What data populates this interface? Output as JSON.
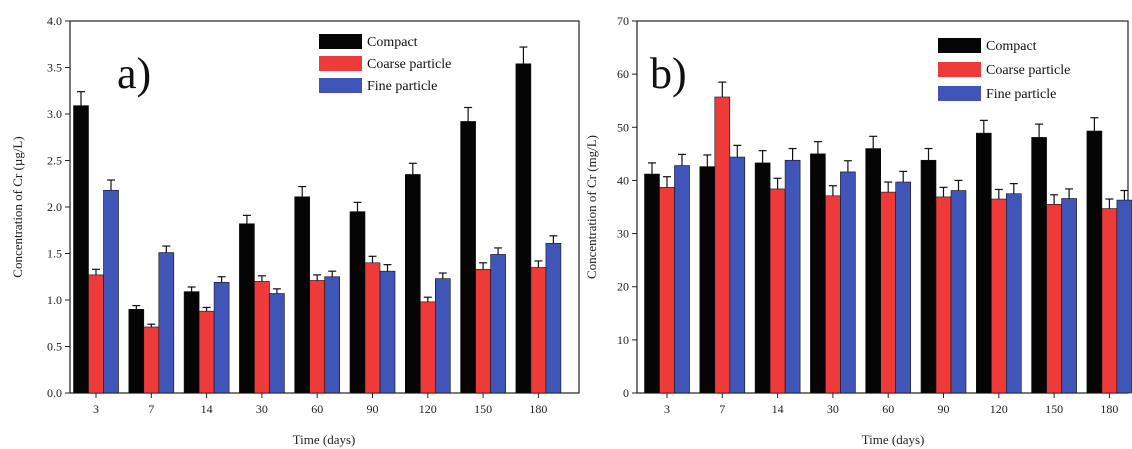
{
  "colors": {
    "compact": "#050505",
    "coarse": "#ef3a3a",
    "fine": "#3f55b8"
  },
  "chart_data": [
    {
      "type": "bar",
      "panel_label": "a)",
      "xlabel": "Time (days)",
      "ylabel": "Concentration of Cr (µg/L)",
      "categories": [
        "3",
        "7",
        "14",
        "30",
        "60",
        "90",
        "120",
        "150",
        "180"
      ],
      "ylim": [
        0,
        4.0
      ],
      "yticks": [
        "0.0",
        "0.5",
        "1.0",
        "1.5",
        "2.0",
        "2.5",
        "3.0",
        "3.5",
        "4.0"
      ],
      "legend_position": "top-right",
      "grid": false,
      "error_bars": true,
      "series": [
        {
          "name": "Compact",
          "values": [
            3.09,
            0.9,
            1.09,
            1.82,
            2.11,
            1.95,
            2.35,
            2.92,
            3.54
          ],
          "errors": [
            0.15,
            0.04,
            0.05,
            0.09,
            0.11,
            0.1,
            0.12,
            0.15,
            0.18
          ]
        },
        {
          "name": "Coarse particle",
          "values": [
            1.27,
            0.71,
            0.88,
            1.2,
            1.21,
            1.4,
            0.98,
            1.33,
            1.35
          ],
          "errors": [
            0.06,
            0.03,
            0.04,
            0.06,
            0.06,
            0.07,
            0.05,
            0.07,
            0.07
          ]
        },
        {
          "name": "Fine particle",
          "values": [
            2.18,
            1.51,
            1.19,
            1.07,
            1.25,
            1.31,
            1.23,
            1.49,
            1.61
          ],
          "errors": [
            0.11,
            0.07,
            0.06,
            0.05,
            0.06,
            0.07,
            0.06,
            0.07,
            0.08
          ]
        }
      ]
    },
    {
      "type": "bar",
      "panel_label": "b)",
      "xlabel": "Time (days)",
      "ylabel": "Concentration of Cr (mg/L)",
      "categories": [
        "3",
        "7",
        "14",
        "30",
        "60",
        "90",
        "120",
        "150",
        "180"
      ],
      "ylim": [
        0,
        70
      ],
      "yticks": [
        "0",
        "10",
        "20",
        "30",
        "40",
        "50",
        "60",
        "70"
      ],
      "legend_position": "top-right",
      "grid": false,
      "error_bars": true,
      "series": [
        {
          "name": "Compact",
          "values": [
            41.2,
            42.6,
            43.3,
            45.0,
            46.0,
            43.8,
            48.9,
            48.1,
            49.3
          ],
          "errors": [
            2.1,
            2.2,
            2.3,
            2.3,
            2.3,
            2.2,
            2.4,
            2.5,
            2.5
          ]
        },
        {
          "name": "Coarse particle",
          "values": [
            38.7,
            55.7,
            38.4,
            37.1,
            37.8,
            36.9,
            36.5,
            35.5,
            34.7
          ],
          "errors": [
            2.0,
            2.8,
            2.0,
            1.9,
            1.9,
            1.8,
            1.8,
            1.8,
            1.8
          ]
        },
        {
          "name": "Fine particle",
          "values": [
            42.8,
            44.4,
            43.8,
            41.6,
            39.7,
            38.1,
            37.5,
            36.6,
            36.3
          ],
          "errors": [
            2.1,
            2.2,
            2.2,
            2.1,
            2.0,
            1.9,
            1.9,
            1.8,
            1.8
          ]
        }
      ]
    }
  ]
}
